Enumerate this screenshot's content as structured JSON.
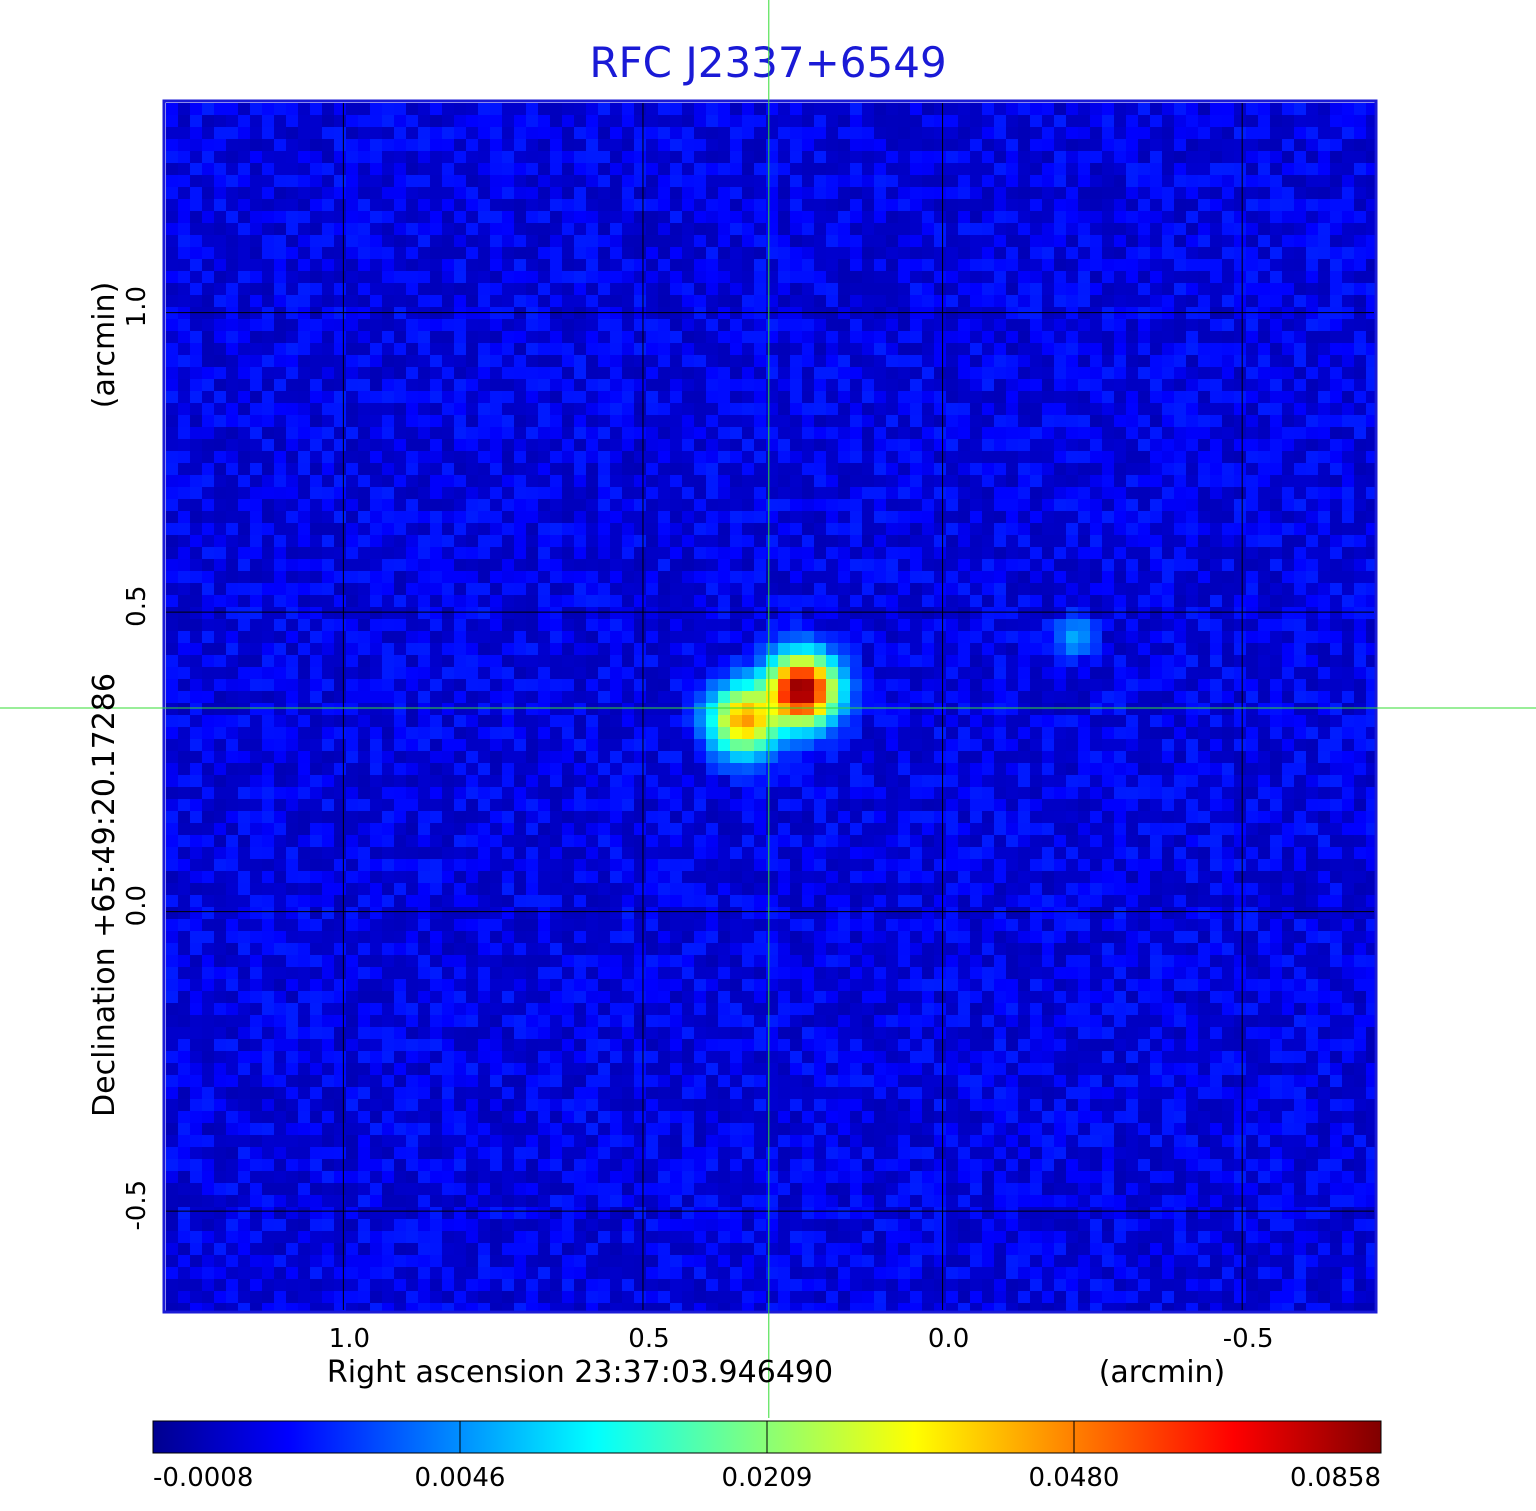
{
  "chart_data": {
    "type": "heatmap",
    "title": "RFC J2337+6549",
    "xlabel": "Right ascension  23:37:03.946490",
    "xunit": "(arcmin)",
    "ylabel": "Declination  +65:49:20.17286",
    "yunit": "(arcmin)",
    "x_ticks": [
      1.0,
      0.5,
      0.0,
      -0.5
    ],
    "x_tick_labels": [
      "1.0",
      "0.5",
      "0.0",
      "-0.5"
    ],
    "y_ticks": [
      1.0,
      0.5,
      0.0,
      -0.5
    ],
    "y_tick_labels": [
      "1.0",
      "0.5",
      "0.0",
      "-0.5"
    ],
    "xlim": [
      1.296,
      -0.72
    ],
    "ylim": [
      -0.665,
      1.35
    ],
    "grid": true,
    "colormap": "jet",
    "colorbar_ticks": [
      "-0.0008",
      "0.0046",
      "0.0209",
      "0.0480",
      "0.0858"
    ],
    "value_range": [
      -0.0008,
      0.0858
    ],
    "sources": [
      {
        "x": 0.235,
        "y": 0.37,
        "peak": 0.0858,
        "sigma": 0.034
      },
      {
        "x": 0.33,
        "y": 0.32,
        "peak": 0.048,
        "sigma": 0.034
      },
      {
        "x": -0.22,
        "y": 0.46,
        "peak": 0.008,
        "sigma": 0.02
      }
    ],
    "crosshair": {
      "x": 0.29,
      "y": 0.34
    },
    "colors": {
      "frame": "#1a1ad6",
      "crosshair": "#33dd33",
      "grid": "#000000",
      "title": "#1a1ad6"
    }
  }
}
